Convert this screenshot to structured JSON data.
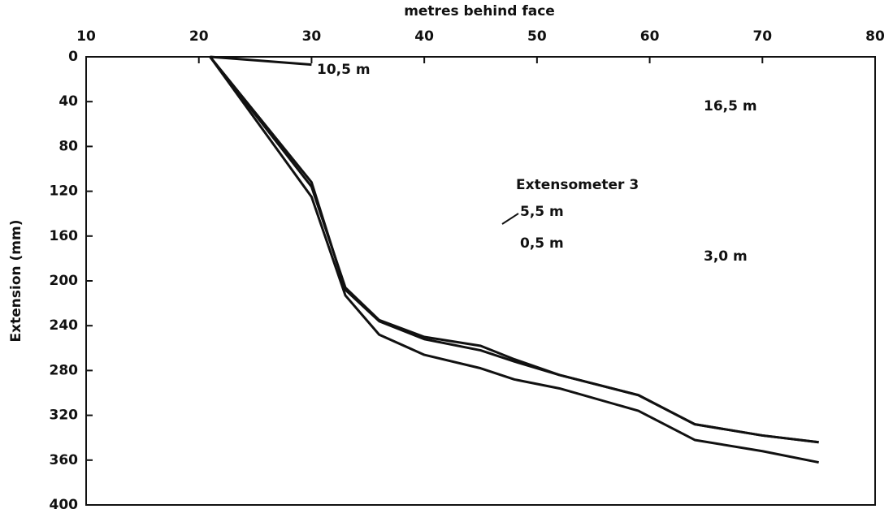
{
  "chart_data": {
    "type": "line",
    "xlabel": "metres behind face",
    "ylabel": "Extension (mm)",
    "annotations": [
      "Extensometer 3",
      "16,5 m"
    ],
    "x": [
      21,
      30,
      33,
      36,
      40,
      45,
      48,
      52,
      59,
      64,
      70,
      75
    ],
    "series": [
      {
        "name": "0,5 m",
        "color": "#111111",
        "values": [
          0,
          125,
          213,
          248,
          266,
          278,
          288,
          296,
          316,
          342,
          352,
          362
        ]
      },
      {
        "name": "3,0 m",
        "color": "#111111",
        "values": [
          0,
          112,
          208,
          236,
          252,
          262,
          272,
          284,
          302,
          328,
          338,
          344
        ]
      },
      {
        "name": "5,5 m",
        "color": "#111111",
        "values": [
          0,
          116,
          206,
          235,
          250,
          258,
          270,
          284,
          302,
          328,
          338,
          344
        ]
      },
      {
        "name": "10,5 m",
        "color": "#111111",
        "values": [
          0,
          7,
          null,
          null,
          null,
          null,
          null,
          null,
          null,
          null,
          null,
          null
        ]
      }
    ],
    "xlim": [
      10,
      80
    ],
    "xticks": [
      10,
      20,
      30,
      40,
      50,
      60,
      70,
      80
    ],
    "ylim": [
      0,
      400
    ],
    "yticks": [
      0,
      40,
      80,
      120,
      160,
      200,
      240,
      280,
      320,
      360,
      400
    ],
    "y_inverted": true,
    "x_axis_position": "top",
    "grid": false
  }
}
